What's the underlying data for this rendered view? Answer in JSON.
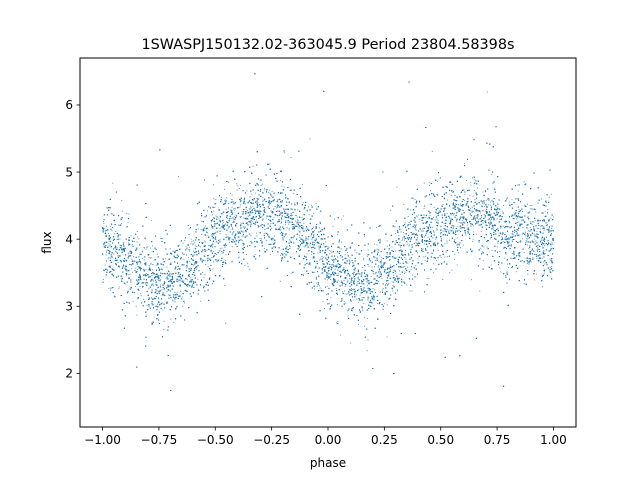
{
  "chart_data": {
    "type": "scatter",
    "title": "1SWASPJ150132.02-363045.9 Period 23804.58398s",
    "xlabel": "phase",
    "ylabel": "flux",
    "xlim": [
      -1.1,
      1.1
    ],
    "ylim": [
      1.2,
      6.7
    ],
    "xticks": [
      -1.0,
      -0.75,
      -0.5,
      -0.25,
      0.0,
      0.25,
      0.5,
      0.75,
      1.0
    ],
    "xtick_labels": [
      "−1.00",
      "−0.75",
      "−0.50",
      "−0.25",
      "0.00",
      "0.25",
      "0.50",
      "0.75",
      "1.00"
    ],
    "yticks": [
      2,
      3,
      4,
      5,
      6
    ],
    "ytick_labels": [
      "2",
      "3",
      "4",
      "5",
      "6"
    ],
    "grid": false,
    "marker_color": "#1f77b4",
    "series": [
      {
        "x": [
          -1.0,
          -0.95,
          -0.9,
          -0.85,
          -0.8,
          -0.75,
          -0.7,
          -0.65,
          -0.6,
          -0.55,
          -0.5,
          -0.45,
          -0.4,
          -0.35,
          -0.3,
          -0.25,
          -0.2,
          -0.15,
          -0.1,
          -0.05,
          0.0,
          0.05,
          0.1,
          0.15,
          0.2,
          0.25,
          0.3,
          0.35,
          0.4,
          0.45,
          0.5,
          0.55,
          0.6,
          0.65,
          0.7,
          0.75,
          0.8,
          0.85,
          0.9,
          0.95,
          1.0
        ],
        "y": [
          3.95,
          3.85,
          3.68,
          3.52,
          3.4,
          3.33,
          3.36,
          3.5,
          3.68,
          3.86,
          4.02,
          4.14,
          4.24,
          4.32,
          4.36,
          4.36,
          4.3,
          4.18,
          4.0,
          3.82,
          3.64,
          3.48,
          3.38,
          3.33,
          3.37,
          3.5,
          3.68,
          3.86,
          4.02,
          4.14,
          4.24,
          4.32,
          4.36,
          4.36,
          4.3,
          4.18,
          4.1,
          4.05,
          4.0,
          3.97,
          3.95
        ],
        "spread": 0.3
      }
    ]
  }
}
